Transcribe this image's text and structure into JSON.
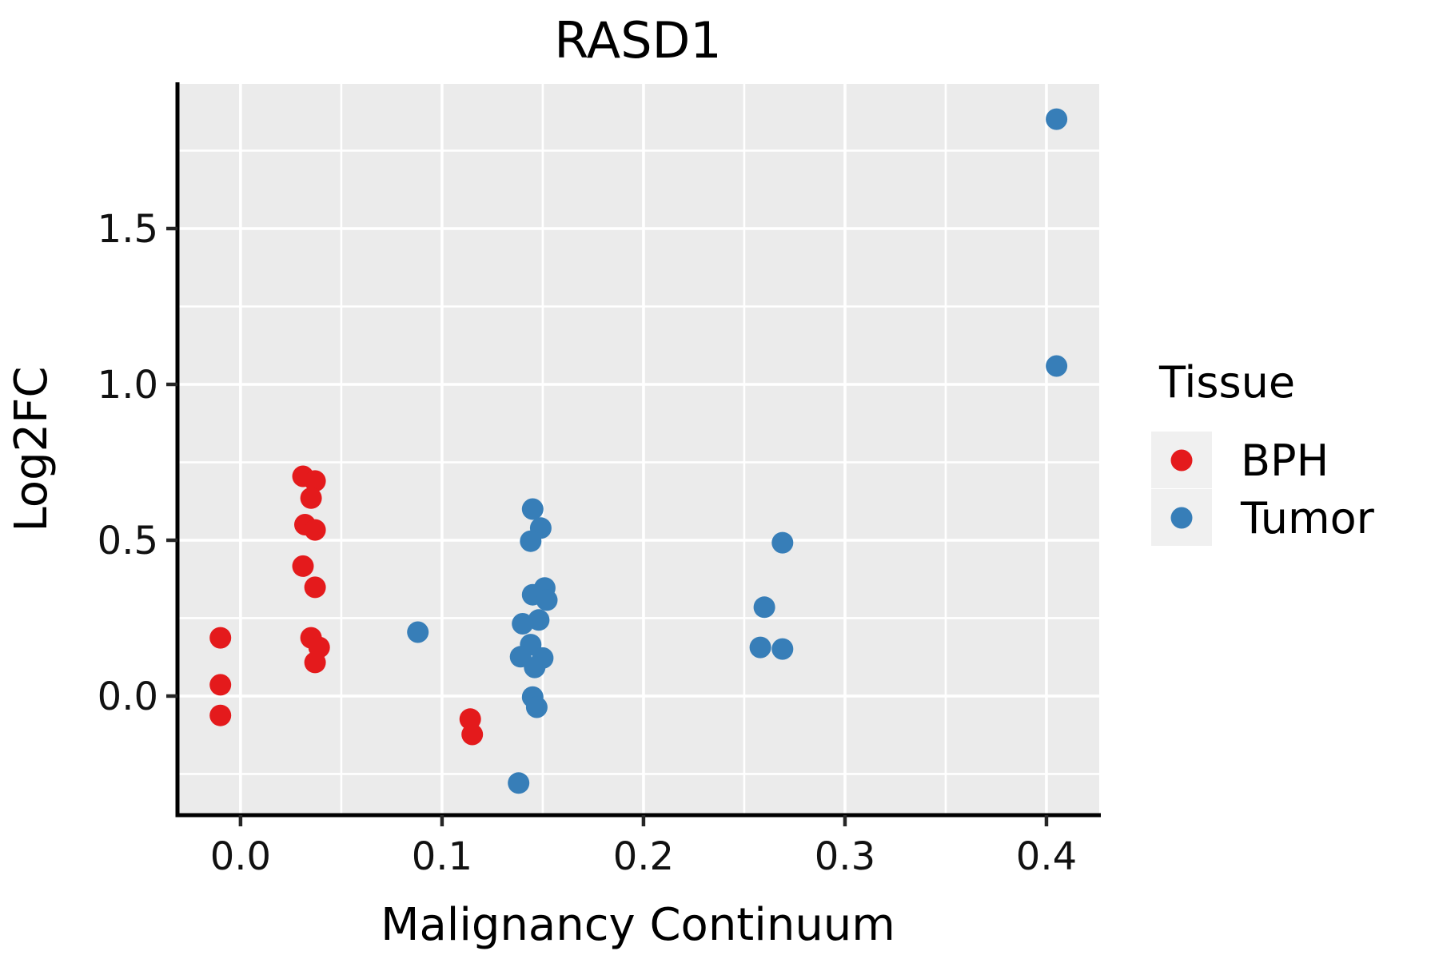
{
  "chart_data": {
    "type": "scatter",
    "title": "RASD1",
    "xlabel": "Malignancy Continuum",
    "ylabel": "Log2FC",
    "xlim": [
      -0.0313,
      0.4262
    ],
    "ylim": [
      -0.3821,
      1.9641
    ],
    "x_ticks": {
      "values": [
        0.0,
        0.1,
        0.2,
        0.3,
        0.4
      ],
      "labels": [
        "0.0",
        "0.1",
        "0.2",
        "0.3",
        "0.4"
      ]
    },
    "y_ticks": {
      "values": [
        0.0,
        0.5,
        1.0,
        1.5
      ],
      "labels": [
        "0.0",
        "0.5",
        "1.0",
        "1.5"
      ]
    },
    "x_minor_ticks": [
      0.05,
      0.15,
      0.25,
      0.35
    ],
    "y_minor_ticks": [
      -0.25,
      0.25,
      0.75,
      1.25,
      1.75
    ],
    "grid": "on",
    "colors": {
      "panel_background": "#EBEBEB",
      "gridline": "#FFFFFF",
      "axis_line": "#000000",
      "tick_mark": "#262626",
      "legend_key_background": "#F0F0F0",
      "bph": "#E41A1C",
      "tumor": "#377EB8"
    },
    "legend": {
      "title": "Tissue",
      "position": "right",
      "entries": [
        {
          "label": "BPH",
          "color": "#E41A1C"
        },
        {
          "label": "Tumor",
          "color": "#377EB8"
        }
      ]
    },
    "series": [
      {
        "name": "BPH",
        "color": "#E41A1C",
        "points": [
          [
            -0.01,
            0.187
          ],
          [
            -0.01,
            0.036
          ],
          [
            -0.01,
            -0.062
          ],
          [
            0.031,
            0.705
          ],
          [
            0.037,
            0.69
          ],
          [
            0.035,
            0.635
          ],
          [
            0.032,
            0.55
          ],
          [
            0.037,
            0.533
          ],
          [
            0.031,
            0.417
          ],
          [
            0.037,
            0.349
          ],
          [
            0.035,
            0.187
          ],
          [
            0.039,
            0.156
          ],
          [
            0.037,
            0.108
          ],
          [
            0.114,
            -0.074
          ],
          [
            0.115,
            -0.123
          ]
        ]
      },
      {
        "name": "Tumor",
        "color": "#377EB8",
        "points": [
          [
            0.088,
            0.205
          ],
          [
            0.145,
            0.6
          ],
          [
            0.149,
            0.539
          ],
          [
            0.144,
            0.497
          ],
          [
            0.151,
            0.347
          ],
          [
            0.145,
            0.325
          ],
          [
            0.152,
            0.308
          ],
          [
            0.148,
            0.244
          ],
          [
            0.14,
            0.232
          ],
          [
            0.144,
            0.165
          ],
          [
            0.139,
            0.126
          ],
          [
            0.15,
            0.122
          ],
          [
            0.146,
            0.092
          ],
          [
            0.145,
            -0.003
          ],
          [
            0.147,
            -0.036
          ],
          [
            0.138,
            -0.279
          ],
          [
            0.269,
            0.492
          ],
          [
            0.26,
            0.285
          ],
          [
            0.258,
            0.156
          ],
          [
            0.269,
            0.151
          ],
          [
            0.405,
            1.851
          ],
          [
            0.405,
            1.059
          ]
        ]
      }
    ]
  }
}
